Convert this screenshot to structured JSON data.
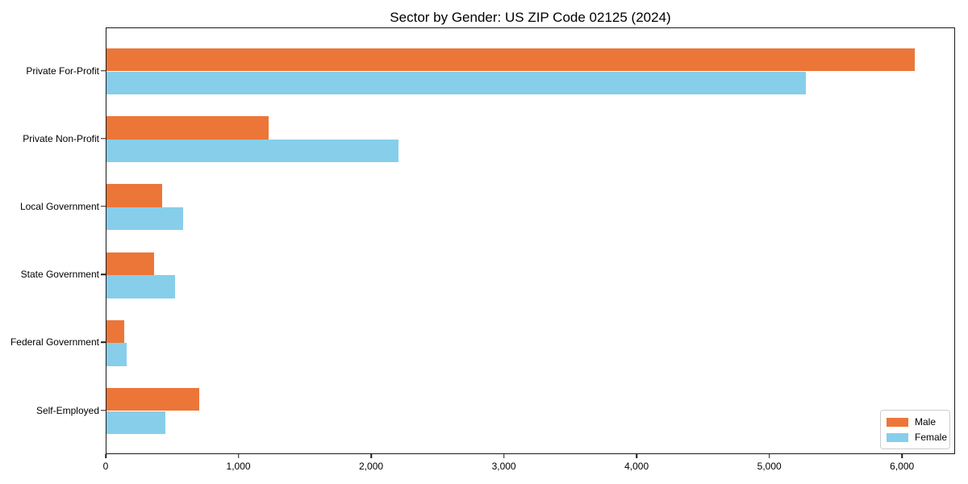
{
  "chart_data": {
    "type": "bar",
    "orientation": "horizontal",
    "title": "Sector by Gender: US ZIP Code 02125 (2024)",
    "categories": [
      "Private For-Profit",
      "Private Non-Profit",
      "Local Government",
      "State Government",
      "Federal Government",
      "Self-Employed"
    ],
    "series": [
      {
        "name": "Male",
        "color": "#EC7638",
        "values": [
          6090,
          1220,
          420,
          360,
          135,
          700
        ]
      },
      {
        "name": "Female",
        "color": "#87CEEB",
        "values": [
          5270,
          2200,
          580,
          515,
          150,
          445
        ]
      }
    ],
    "xlabel": "",
    "ylabel": "",
    "xlim": [
      0,
      6400
    ],
    "xticks": [
      {
        "value": 0,
        "label": "0"
      },
      {
        "value": 1000,
        "label": "1,000"
      },
      {
        "value": 2000,
        "label": "2,000"
      },
      {
        "value": 3000,
        "label": "3,000"
      },
      {
        "value": 4000,
        "label": "4,000"
      },
      {
        "value": 5000,
        "label": "5,000"
      },
      {
        "value": 6000,
        "label": "6,000"
      }
    ],
    "grid": false,
    "legend_position": "lower right",
    "spine_color": "#1a1a1a",
    "background_color": "#ffffff"
  }
}
